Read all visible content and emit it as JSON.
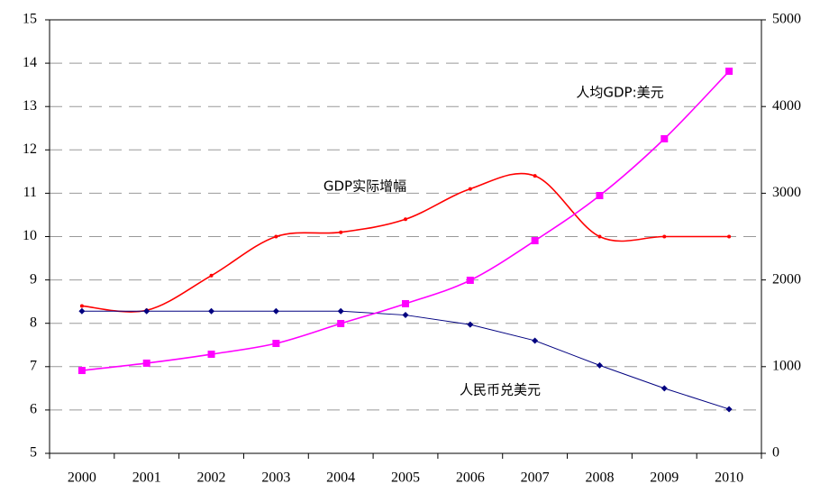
{
  "chart_data": {
    "type": "line",
    "categories": [
      "2000",
      "2001",
      "2002",
      "2003",
      "2004",
      "2005",
      "2006",
      "2007",
      "2008",
      "2009",
      "2010"
    ],
    "ylim": [
      5,
      15
    ],
    "yticks": [
      5,
      6,
      7,
      8,
      9,
      10,
      11,
      12,
      13,
      14,
      15
    ],
    "y2lim": [
      0,
      5000
    ],
    "y2ticks": [
      0,
      1000,
      2000,
      3000,
      4000,
      5000
    ],
    "grid": true,
    "series": [
      {
        "name": "GDP实际增幅",
        "color": "#ff0000",
        "marker": "dot",
        "smooth": true,
        "values": [
          8.4,
          8.3,
          9.1,
          10.0,
          10.1,
          10.4,
          11.1,
          11.4,
          10.0,
          10.0,
          10.0
        ]
      },
      {
        "name": "人民币兑美元",
        "color": "#000080",
        "marker": "diamond",
        "smooth": false,
        "values": [
          8.28,
          8.28,
          8.28,
          8.28,
          8.28,
          8.19,
          7.97,
          7.6,
          7.03,
          6.5,
          6.02
        ]
      },
      {
        "name": "人均GDP:美元",
        "color": "#ff00ff",
        "marker": "square",
        "smooth": true,
        "axis": "y2",
        "values": [
          956,
          1040,
          1143,
          1268,
          1497,
          1726,
          1996,
          2453,
          2973,
          3628,
          4407
        ]
      }
    ]
  }
}
